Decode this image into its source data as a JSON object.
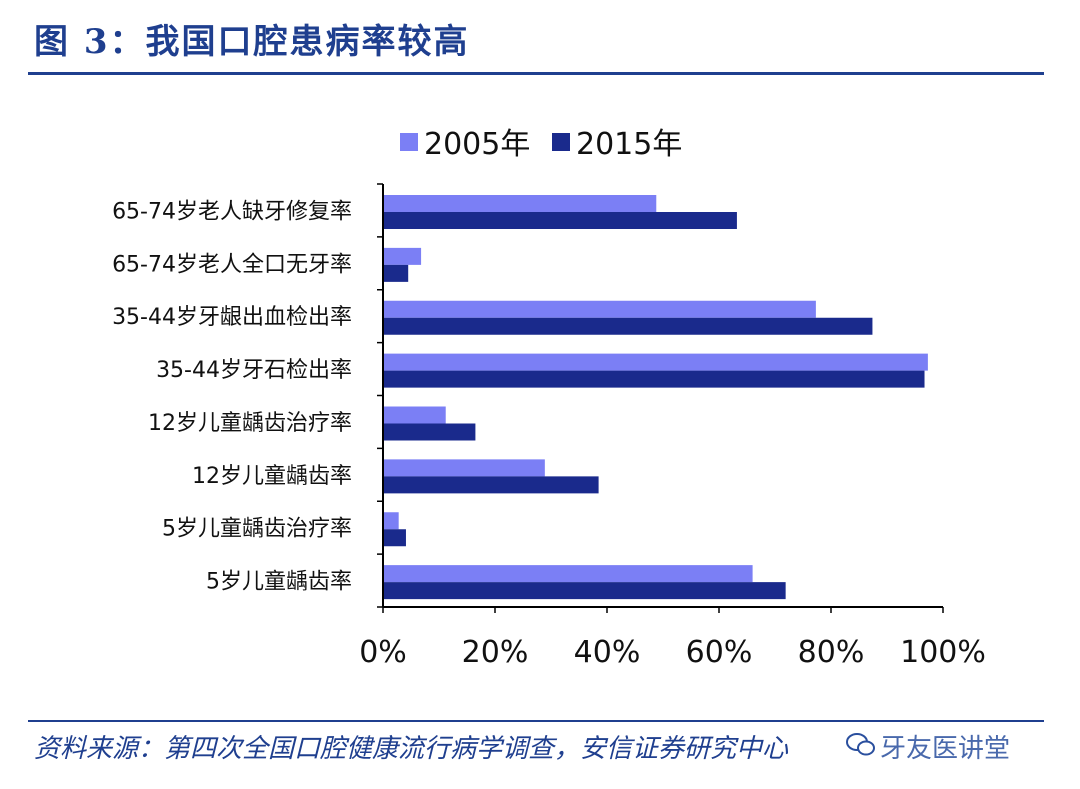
{
  "header": {
    "title": "图 3：我国口腔患病率较高"
  },
  "footer": {
    "source": "资料来源：第四次全国口腔健康流行病学调查，安信证券研究中心",
    "watermark": "牙友医讲堂"
  },
  "colors": {
    "series_2005": "#7b7ff5",
    "series_2015": "#1a2a8c",
    "rule": "#1f3f8f"
  },
  "chart_data": {
    "type": "bar",
    "orientation": "horizontal",
    "categories": [
      "65-74岁老人缺牙修复率",
      "65-74岁老人全口无牙率",
      "35-44岁牙龈出血检出率",
      "35-44岁牙石检出率",
      "12岁儿童龋齿治疗率",
      "12岁儿童龋齿率",
      "5岁儿童龋齿治疗率",
      "5岁儿童龋齿率"
    ],
    "series": [
      {
        "name": "2005年",
        "values": [
          48.8,
          6.8,
          77.3,
          97.3,
          11.2,
          28.9,
          2.8,
          66.0
        ]
      },
      {
        "name": "2015年",
        "values": [
          63.2,
          4.5,
          87.4,
          96.7,
          16.5,
          38.5,
          4.1,
          71.9
        ]
      }
    ],
    "xlim": [
      0,
      100
    ],
    "xticks": [
      "0%",
      "20%",
      "40%",
      "60%",
      "80%",
      "100%"
    ],
    "legend_position": "top",
    "grid": false
  }
}
